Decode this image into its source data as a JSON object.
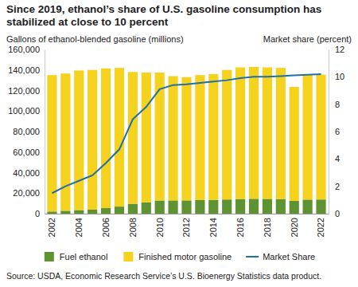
{
  "chart_data": {
    "type": "bar",
    "title": "Since 2019, ethanol’s share of U.S. gasoline consumption has stabilized at close to 10 percent",
    "y_label": "Gallons of ethanol-blended gasoline (millions)",
    "y2_label": "Market share (percent)",
    "source": "Source: USDA, Economic Research Service’s U.S. Bioenergy Statistics data product.",
    "categories": [
      "2002",
      null,
      "2004",
      null,
      "2006",
      null,
      "2008",
      null,
      "2010",
      null,
      "2012",
      null,
      "2014",
      null,
      "2016",
      null,
      "2018",
      null,
      "2020",
      null,
      "2022"
    ],
    "stacked": true,
    "grid": false,
    "legend": "bottom",
    "ylim": [
      0,
      160000
    ],
    "yticks": [
      0,
      {
        "value": 20000,
        "label": "20,000"
      },
      {
        "value": 40000,
        "label": "40,000"
      },
      {
        "value": 60000,
        "label": "60,000"
      },
      {
        "value": 80000,
        "label": "80,000"
      },
      {
        "value": 100000,
        "label": "100,000"
      },
      {
        "value": 120000,
        "label": "120,000"
      },
      {
        "value": 140000,
        "label": "140,000"
      },
      {
        "value": 160000,
        "label": "160,000"
      }
    ],
    "y2lim": [
      0,
      12
    ],
    "y2ticks": [
      0,
      2,
      4,
      6,
      8,
      10,
      12
    ],
    "series": [
      {
        "name": "Fuel ethanol",
        "type": "bar",
        "color": "#5f9230",
        "values": [
          2100,
          2800,
          3500,
          3900,
          5400,
          6900,
          9600,
          11000,
          12800,
          12900,
          12900,
          13200,
          13400,
          13800,
          14300,
          14500,
          14400,
          14300,
          12500,
          13700,
          13800
        ]
      },
      {
        "name": "Finished motor gasoline",
        "type": "bar",
        "color": "#f4d21e",
        "values": [
          132900,
          133700,
          136000,
          136100,
          136100,
          135100,
          128400,
          126500,
          124700,
          121100,
          120100,
          121800,
          122600,
          126200,
          128200,
          128500,
          128100,
          127700,
          111000,
          121300,
          121700
        ]
      },
      {
        "name": "Market Share",
        "type": "line",
        "axis": "y2",
        "color": "#1f70a8",
        "values": [
          1.5,
          2.0,
          2.4,
          2.8,
          3.7,
          4.7,
          6.9,
          7.8,
          9.1,
          9.4,
          9.45,
          9.55,
          9.65,
          9.75,
          9.9,
          10.0,
          10.0,
          10.05,
          10.1,
          10.15,
          10.2
        ]
      }
    ]
  }
}
